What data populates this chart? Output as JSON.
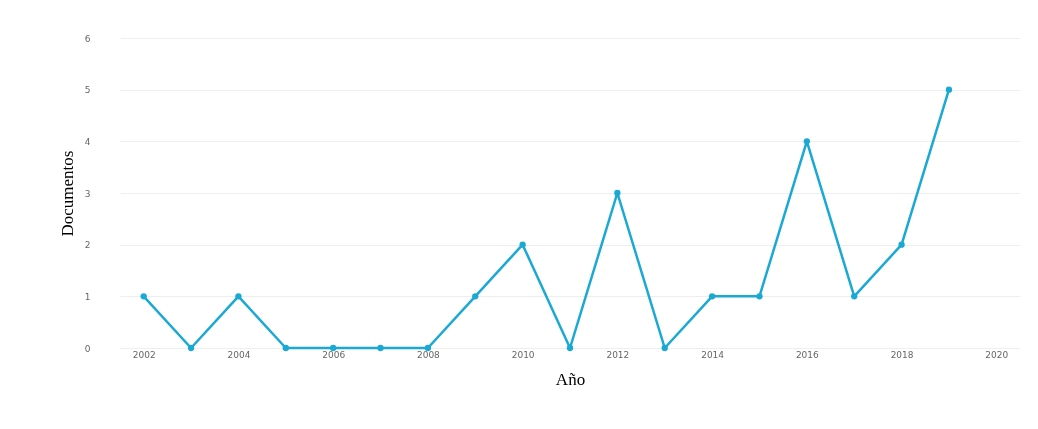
{
  "chart_data": {
    "type": "line",
    "xlabel": "Año",
    "ylabel": "Documentos",
    "x": [
      2002,
      2003,
      2004,
      2005,
      2006,
      2007,
      2008,
      2009,
      2010,
      2011,
      2012,
      2013,
      2014,
      2015,
      2016,
      2017,
      2018,
      2019
    ],
    "series": [
      {
        "color": "#1aa9d4",
        "values": [
          1,
          0,
          1,
          0,
          0,
          0,
          0,
          1,
          2,
          0,
          3,
          0,
          1,
          1,
          4,
          1,
          2,
          5
        ]
      }
    ],
    "xlim": [
      2001.5,
      2020.5
    ],
    "xticks": [
      2002,
      2004,
      2006,
      2008,
      2010,
      2012,
      2014,
      2016,
      2018,
      2020
    ],
    "ylim": [
      0,
      6
    ],
    "yticks": [
      0,
      1,
      2,
      3,
      4,
      5,
      6
    ],
    "grid": "y",
    "marker": "circle",
    "line_style": "solid"
  }
}
